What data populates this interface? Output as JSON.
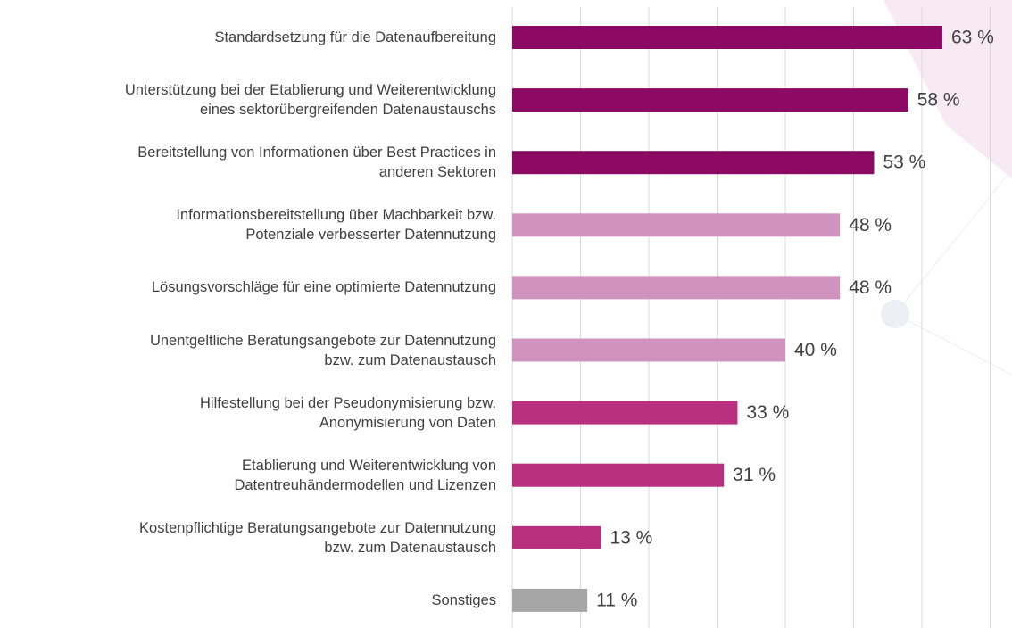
{
  "chart_data": {
    "type": "barh",
    "categories": [
      "Standardsetzung für die Datenaufbereitung",
      "Unterstützung bei der Etablierung und Weiterentwicklung\neines sektorübergreifenden Datenaustauschs",
      "Bereitstellung von Informationen über Best Practices in\nanderen Sektoren",
      "Informationsbereitstellung über Machbarkeit bzw.\nPotenziale verbesserter Datennutzung",
      "Lösungsvorschläge für eine optimierte Datennutzung",
      "Unentgeltliche Beratungsangebote zur Datennutzung\nbzw. zum Datenaustausch",
      "Hilfestellung bei der Pseudonymisierung bzw.\nAnonymisierung von Daten",
      "Etablierung und Weiterentwicklung von\nDatentreuhändermodellen und Lizenzen",
      "Kostenpflichtige Beratungsangebote zur Datennutzung\nbzw. zum Datenaustausch",
      "Sonstiges"
    ],
    "values": [
      63,
      58,
      53,
      48,
      48,
      40,
      33,
      31,
      13,
      11
    ],
    "value_labels": [
      "63 %",
      "58 %",
      "53 %",
      "48 %",
      "48 %",
      "40 %",
      "33 %",
      "31 %",
      "13 %",
      "11 %"
    ],
    "colors": [
      "#8c0a64",
      "#8c0a64",
      "#8c0a64",
      "#d093c0",
      "#d093c0",
      "#d093c0",
      "#b8307f",
      "#b8307f",
      "#b8307f",
      "#a6a6a6"
    ],
    "xlim": [
      0,
      70
    ],
    "xticks": [
      0,
      10,
      20,
      30,
      40,
      50,
      60,
      70
    ],
    "grid": true
  }
}
